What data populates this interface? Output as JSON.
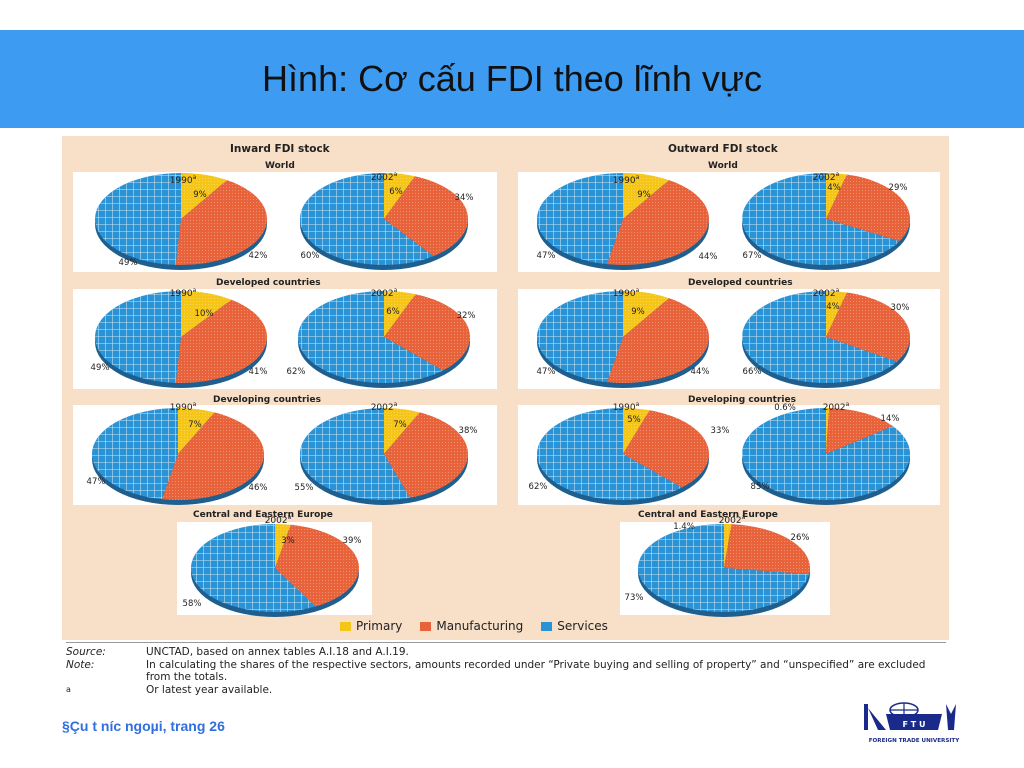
{
  "slide": {
    "title": "Hình: Cơ cấu FDI theo lĩnh vực",
    "footer": "§Çu t­ n­íc ngoµi, trang 26",
    "logo_text": "FOREIGN TRADE UNIVERSITY",
    "logo_badge": "F T U"
  },
  "colors": {
    "header": "#3d9cf2",
    "primary": "#f5c518",
    "manufacturing": "#e8623a",
    "services": "#2a93d5",
    "figure_bg": "#f7dfc8"
  },
  "figure": {
    "inward_title": "Inward FDI stock",
    "outward_title": "Outward FDI stock",
    "regions": {
      "world": "World",
      "developed": "Developed countries",
      "developing": "Developing countries",
      "cee": "Central and Eastern Europe"
    },
    "legend": {
      "primary": "Primary",
      "manufacturing": "Manufacturing",
      "services": "Services"
    },
    "source_label": "Source:",
    "source_text": "UNCTAD, based on annex tables A.I.18 and A.I.19.",
    "note_label": "Note:",
    "note_text": "In calculating the shares of the respective sectors, amounts recorded under “Private buying and selling of property” and “unspecified” are excluded from the totals.",
    "footnote_mark": "a",
    "footnote_text": "Or latest year available."
  },
  "chart_data": {
    "type": "pie",
    "categories": [
      "Primary",
      "Manufacturing",
      "Services"
    ],
    "pies": [
      {
        "panel": "Inward FDI stock",
        "region": "World",
        "year": "1990",
        "values": [
          9,
          42,
          49
        ],
        "labels": [
          "9%",
          "42%",
          "49%"
        ]
      },
      {
        "panel": "Inward FDI stock",
        "region": "World",
        "year": "2002",
        "values": [
          6,
          34,
          60
        ],
        "labels": [
          "6%",
          "34%",
          "60%"
        ]
      },
      {
        "panel": "Inward FDI stock",
        "region": "Developed countries",
        "year": "1990",
        "values": [
          10,
          41,
          49
        ],
        "labels": [
          "10%",
          "41%",
          "49%"
        ]
      },
      {
        "panel": "Inward FDI stock",
        "region": "Developed countries",
        "year": "2002",
        "values": [
          6,
          32,
          62
        ],
        "labels": [
          "6%",
          "32%",
          "62%"
        ]
      },
      {
        "panel": "Inward FDI stock",
        "region": "Developing countries",
        "year": "1990",
        "values": [
          7,
          46,
          47
        ],
        "labels": [
          "7%",
          "46%",
          "47%"
        ]
      },
      {
        "panel": "Inward FDI stock",
        "region": "Developing countries",
        "year": "2002",
        "values": [
          7,
          38,
          55
        ],
        "labels": [
          "7%",
          "38%",
          "55%"
        ]
      },
      {
        "panel": "Inward FDI stock",
        "region": "Central and Eastern Europe",
        "year": "2002",
        "values": [
          3,
          39,
          58
        ],
        "labels": [
          "3%",
          "39%",
          "58%"
        ]
      },
      {
        "panel": "Outward FDI stock",
        "region": "World",
        "year": "1990",
        "values": [
          9,
          44,
          47
        ],
        "labels": [
          "9%",
          "44%",
          "47%"
        ]
      },
      {
        "panel": "Outward FDI stock",
        "region": "World",
        "year": "2002",
        "values": [
          4,
          29,
          67
        ],
        "labels": [
          "4%",
          "29%",
          "67%"
        ]
      },
      {
        "panel": "Outward FDI stock",
        "region": "Developed countries",
        "year": "1990",
        "values": [
          9,
          44,
          47
        ],
        "labels": [
          "9%",
          "44%",
          "47%"
        ]
      },
      {
        "panel": "Outward FDI stock",
        "region": "Developed countries",
        "year": "2002",
        "values": [
          4,
          30,
          66
        ],
        "labels": [
          "4%",
          "30%",
          "66%"
        ]
      },
      {
        "panel": "Outward FDI stock",
        "region": "Developing countries",
        "year": "1990",
        "values": [
          5,
          33,
          62
        ],
        "labels": [
          "5%",
          "33%",
          "62%"
        ]
      },
      {
        "panel": "Outward FDI stock",
        "region": "Developing countries",
        "year": "2002",
        "values": [
          0.6,
          14,
          85
        ],
        "labels": [
          "0.6%",
          "14%",
          "85%"
        ]
      },
      {
        "panel": "Outward FDI stock",
        "region": "Central and Eastern Europe",
        "year": "2002",
        "values": [
          1.4,
          26,
          73
        ],
        "labels": [
          "1.4%",
          "26%",
          "73%"
        ]
      }
    ],
    "year_suffix": "a",
    "legend_position": "bottom"
  }
}
